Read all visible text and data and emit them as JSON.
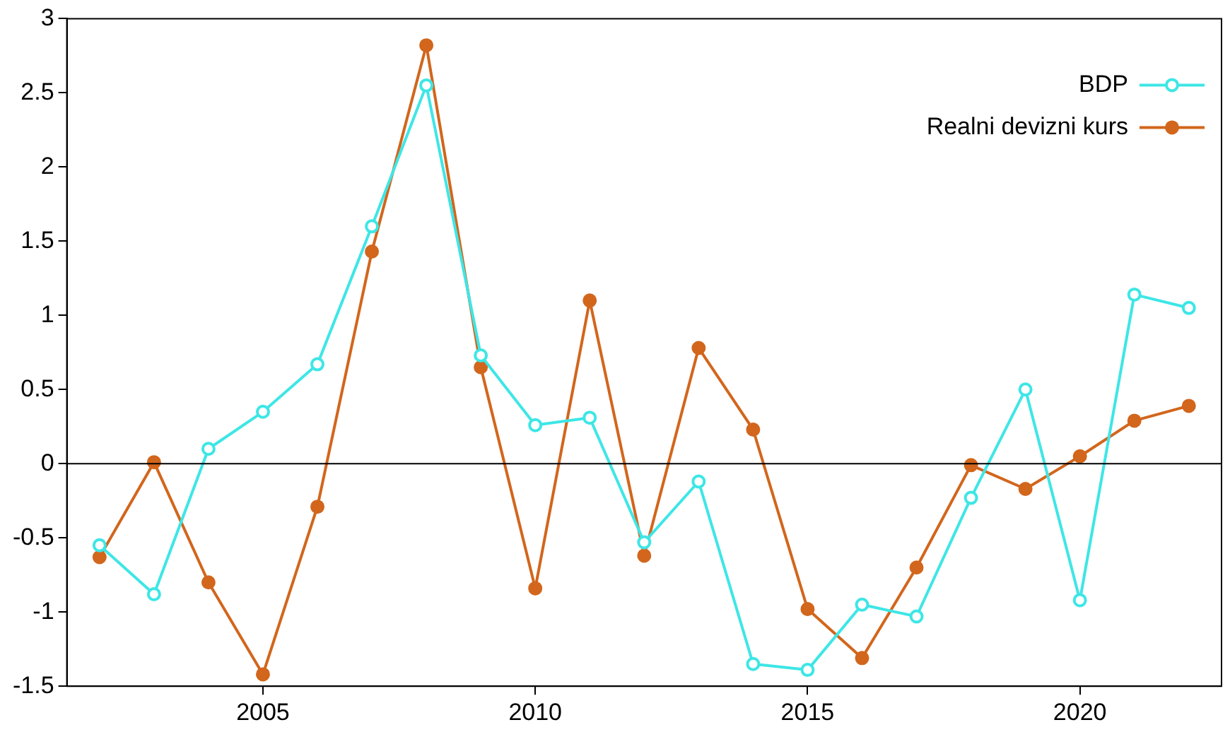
{
  "chart_data": {
    "type": "line",
    "x": [
      2002,
      2003,
      2004,
      2005,
      2006,
      2007,
      2008,
      2009,
      2010,
      2011,
      2012,
      2013,
      2014,
      2015,
      2016,
      2017,
      2018,
      2019,
      2020,
      2021,
      2022
    ],
    "series": [
      {
        "name": "BDP",
        "color": "#3ee6e6",
        "values": [
          -0.55,
          -0.88,
          0.1,
          0.35,
          0.67,
          1.6,
          2.55,
          0.73,
          0.26,
          0.31,
          -0.53,
          -0.12,
          -1.35,
          -1.39,
          -0.95,
          -1.03,
          -0.23,
          0.5,
          -0.92,
          1.14,
          1.05
        ]
      },
      {
        "name": "Realni devizni kurs",
        "color": "#d2661c",
        "values": [
          -0.63,
          0.01,
          -0.8,
          -1.42,
          -0.29,
          1.43,
          2.82,
          0.65,
          -0.84,
          1.1,
          -0.62,
          0.78,
          0.23,
          -0.98,
          -1.31,
          -0.7,
          -0.01,
          -0.17,
          0.05,
          0.29,
          0.39
        ]
      }
    ],
    "xlim": [
      2001.4,
      2022.6
    ],
    "xticks": [
      2005,
      2010,
      2015,
      2020
    ],
    "ylim": [
      -1.5,
      3
    ],
    "yticks": [
      -1.5,
      -1,
      -0.5,
      0,
      0.5,
      1,
      1.5,
      2,
      2.5,
      3
    ],
    "ref_lines": [
      {
        "axis": "y",
        "value": 0,
        "color": "#000000"
      }
    ],
    "grid": false,
    "legend": "top right",
    "marker": "circle",
    "line_style": "solid"
  }
}
